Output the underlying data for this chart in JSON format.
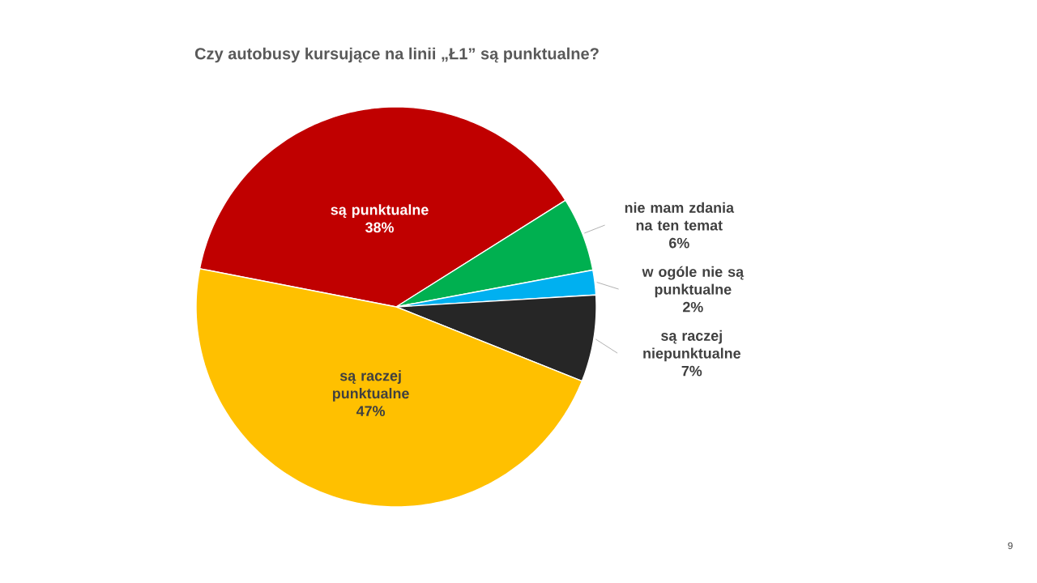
{
  "chart_data": {
    "type": "pie",
    "title": "Czy autobusy kursujące na linii „Ł1” są punktualne?",
    "categories": [
      "są punktualne",
      "nie mam zdania na ten temat",
      "w ogóle nie są punktualne",
      "są raczej niepunktualne",
      "są raczej punktualne"
    ],
    "values": [
      38,
      6,
      2,
      7,
      47
    ],
    "value_labels": [
      "38%",
      "6%",
      "2%",
      "7%",
      "47%"
    ],
    "colors": [
      "#c00000",
      "#00b050",
      "#00b0f0",
      "#262626",
      "#ffc000"
    ],
    "annotations": [
      "9"
    ]
  }
}
